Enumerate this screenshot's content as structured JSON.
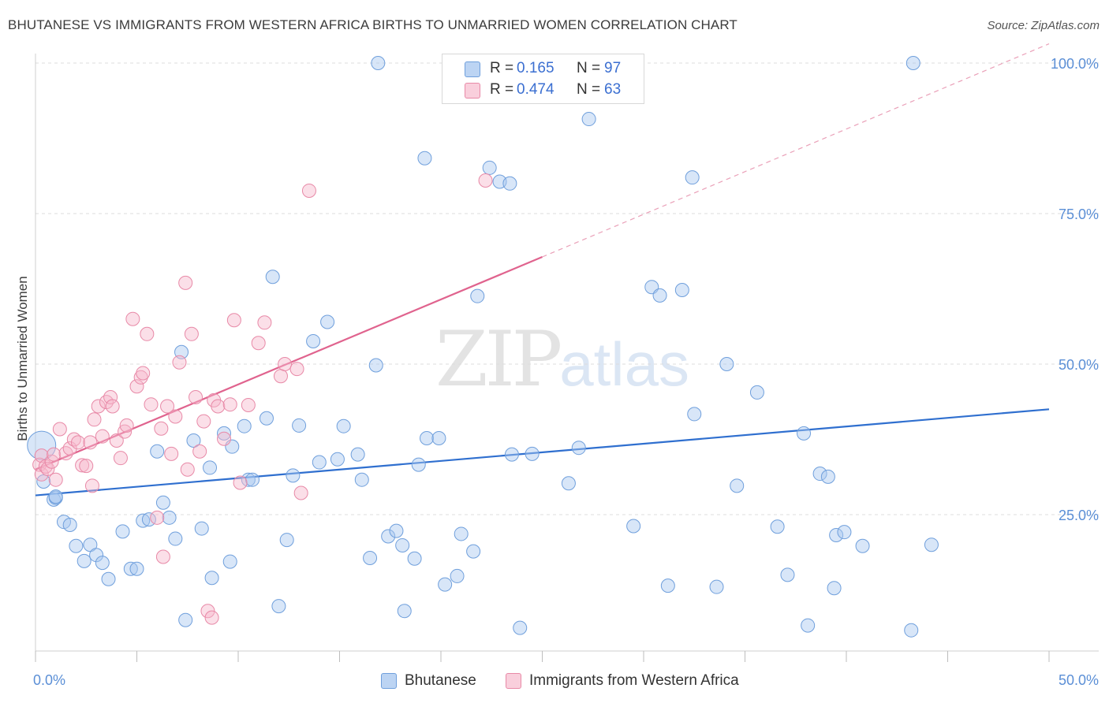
{
  "title": "BHUTANESE VS IMMIGRANTS FROM WESTERN AFRICA BIRTHS TO UNMARRIED WOMEN CORRELATION CHART",
  "source": "Source: ZipAtlas.com",
  "watermark": {
    "part1": "ZIP",
    "part2": "atlas"
  },
  "legend_top": [
    {
      "r_label": "R =",
      "r_value": "0.165",
      "n_label": "N =",
      "n_value": "97",
      "color": "#a9c8f0"
    },
    {
      "r_label": "R =",
      "r_value": "0.474",
      "n_label": "N =",
      "n_value": "63",
      "color": "#f6b8cb"
    }
  ],
  "legend_bottom": [
    {
      "label": "Bhutanese",
      "color": "#a9c8f0"
    },
    {
      "label": "Immigrants from Western Africa",
      "color": "#f6b8cb"
    }
  ],
  "chart_data": {
    "type": "scatter",
    "title": "BHUTANESE VS IMMIGRANTS FROM WESTERN AFRICA BIRTHS TO UNMARRIED WOMEN CORRELATION CHART",
    "xlabel": "",
    "ylabel": "Births to Unmarried Women",
    "xlim": [
      0,
      50
    ],
    "ylim": [
      0,
      105
    ],
    "x_tick_labels": [
      {
        "value": 0,
        "label": "0.0%"
      },
      {
        "value": 50,
        "label": "50.0%"
      }
    ],
    "y_tick_labels": [
      {
        "value": 25,
        "label": "25.0%"
      },
      {
        "value": 50,
        "label": "50.0%"
      },
      {
        "value": 75,
        "label": "75.0%"
      },
      {
        "value": 100,
        "label": "100.0%"
      }
    ],
    "grid": "horizontal dashed",
    "legend_position": "top-center",
    "series": [
      {
        "name": "Bhutanese",
        "color": "#a9c8f0",
        "stroke": "#6f9fdc",
        "r": 0.165,
        "n": 97,
        "trend": {
          "x0": 0,
          "y0": 28.2,
          "x1": 50,
          "y1": 42.5,
          "color": "#2f6fcf"
        },
        "points": [
          [
            0.3,
            36.5
          ],
          [
            0.4,
            30.5
          ],
          [
            0.9,
            27.5
          ],
          [
            1.0,
            27.8
          ],
          [
            1.4,
            23.8
          ],
          [
            1.7,
            23.3
          ],
          [
            2.0,
            19.8
          ],
          [
            2.4,
            17.3
          ],
          [
            2.7,
            20.0
          ],
          [
            3.0,
            18.3
          ],
          [
            3.3,
            17.0
          ],
          [
            3.6,
            14.3
          ],
          [
            4.3,
            22.2
          ],
          [
            4.7,
            16.0
          ],
          [
            5.0,
            16.0
          ],
          [
            5.3,
            24.0
          ],
          [
            5.6,
            24.2
          ],
          [
            6.0,
            35.5
          ],
          [
            6.3,
            27.0
          ],
          [
            6.6,
            24.5
          ],
          [
            6.9,
            21.0
          ],
          [
            7.2,
            52.0
          ],
          [
            7.4,
            7.5
          ],
          [
            7.8,
            37.3
          ],
          [
            8.2,
            22.7
          ],
          [
            8.6,
            32.8
          ],
          [
            8.7,
            14.5
          ],
          [
            9.3,
            38.5
          ],
          [
            9.6,
            17.2
          ],
          [
            9.7,
            36.3
          ],
          [
            10.3,
            39.7
          ],
          [
            10.5,
            30.8
          ],
          [
            10.7,
            30.8
          ],
          [
            11.4,
            41.0
          ],
          [
            11.7,
            64.5
          ],
          [
            12.0,
            9.8
          ],
          [
            12.4,
            20.8
          ],
          [
            12.7,
            31.5
          ],
          [
            13.0,
            39.8
          ],
          [
            13.7,
            53.8
          ],
          [
            14.0,
            33.7
          ],
          [
            14.4,
            57.0
          ],
          [
            14.9,
            34.2
          ],
          [
            15.2,
            39.7
          ],
          [
            15.9,
            35.0
          ],
          [
            16.1,
            30.8
          ],
          [
            16.5,
            17.8
          ],
          [
            16.8,
            49.8
          ],
          [
            16.9,
            100.0
          ],
          [
            17.4,
            21.4
          ],
          [
            17.8,
            22.3
          ],
          [
            18.1,
            19.9
          ],
          [
            18.2,
            9.0
          ],
          [
            18.7,
            17.7
          ],
          [
            18.9,
            33.3
          ],
          [
            19.2,
            84.2
          ],
          [
            19.3,
            37.7
          ],
          [
            19.9,
            37.7
          ],
          [
            20.2,
            13.4
          ],
          [
            20.8,
            14.8
          ],
          [
            21.0,
            21.8
          ],
          [
            21.6,
            18.9
          ],
          [
            21.8,
            61.3
          ],
          [
            22.4,
            82.6
          ],
          [
            22.9,
            80.3
          ],
          [
            23.4,
            80.0
          ],
          [
            23.5,
            35.0
          ],
          [
            23.9,
            6.2
          ],
          [
            24.5,
            35.1
          ],
          [
            26.3,
            30.2
          ],
          [
            26.8,
            36.1
          ],
          [
            27.3,
            90.7
          ],
          [
            29.5,
            23.1
          ],
          [
            30.4,
            62.8
          ],
          [
            30.8,
            61.4
          ],
          [
            31.2,
            13.2
          ],
          [
            31.9,
            62.3
          ],
          [
            32.4,
            81.0
          ],
          [
            32.5,
            41.7
          ],
          [
            33.6,
            13.0
          ],
          [
            34.1,
            50.0
          ],
          [
            34.6,
            29.8
          ],
          [
            35.6,
            45.3
          ],
          [
            36.6,
            23.0
          ],
          [
            37.1,
            15.0
          ],
          [
            37.9,
            38.5
          ],
          [
            38.1,
            6.6
          ],
          [
            38.7,
            31.8
          ],
          [
            39.1,
            31.3
          ],
          [
            39.4,
            12.8
          ],
          [
            39.5,
            21.6
          ],
          [
            39.9,
            22.1
          ],
          [
            40.8,
            19.8
          ],
          [
            43.2,
            5.8
          ],
          [
            43.3,
            100.0
          ],
          [
            44.2,
            20.0
          ],
          [
            1.0,
            28.0
          ]
        ]
      },
      {
        "name": "Immigrants from Western Africa",
        "color": "#f6b8cb",
        "stroke": "#e889a7",
        "r": 0.474,
        "n": 63,
        "trend": {
          "x0": 0,
          "y0": 32.5,
          "x1": 25,
          "y1": 67.8,
          "x_dash_end": 50,
          "y_dash_end": 103.2,
          "color": "#e0638e"
        },
        "points": [
          [
            0.2,
            33.3
          ],
          [
            0.3,
            31.7
          ],
          [
            0.3,
            34.8
          ],
          [
            0.5,
            33.0
          ],
          [
            0.6,
            32.6
          ],
          [
            0.8,
            33.8
          ],
          [
            0.9,
            35.0
          ],
          [
            1.0,
            30.8
          ],
          [
            1.2,
            39.2
          ],
          [
            1.5,
            35.2
          ],
          [
            1.7,
            36.0
          ],
          [
            1.9,
            37.5
          ],
          [
            2.1,
            37.0
          ],
          [
            2.3,
            33.2
          ],
          [
            2.5,
            33.1
          ],
          [
            2.7,
            37.0
          ],
          [
            2.8,
            29.8
          ],
          [
            2.9,
            40.8
          ],
          [
            3.1,
            43.0
          ],
          [
            3.3,
            38.0
          ],
          [
            3.5,
            43.7
          ],
          [
            3.7,
            44.5
          ],
          [
            3.8,
            43.0
          ],
          [
            4.0,
            37.3
          ],
          [
            4.2,
            34.4
          ],
          [
            4.4,
            38.8
          ],
          [
            4.5,
            39.8
          ],
          [
            4.8,
            57.5
          ],
          [
            5.0,
            46.3
          ],
          [
            5.2,
            47.8
          ],
          [
            5.3,
            48.5
          ],
          [
            5.5,
            55.0
          ],
          [
            5.7,
            43.3
          ],
          [
            6.0,
            24.5
          ],
          [
            6.2,
            39.3
          ],
          [
            6.3,
            18.0
          ],
          [
            6.5,
            43.0
          ],
          [
            6.7,
            35.1
          ],
          [
            6.9,
            41.3
          ],
          [
            7.1,
            50.3
          ],
          [
            7.4,
            63.5
          ],
          [
            7.5,
            32.5
          ],
          [
            7.7,
            55.0
          ],
          [
            7.9,
            44.5
          ],
          [
            8.1,
            35.5
          ],
          [
            8.3,
            40.5
          ],
          [
            8.5,
            9.0
          ],
          [
            8.7,
            7.9
          ],
          [
            8.8,
            44.0
          ],
          [
            9.0,
            43.0
          ],
          [
            9.3,
            37.6
          ],
          [
            9.6,
            43.3
          ],
          [
            9.8,
            57.3
          ],
          [
            10.1,
            30.3
          ],
          [
            10.5,
            43.2
          ],
          [
            11.0,
            53.5
          ],
          [
            11.3,
            56.9
          ],
          [
            12.1,
            48.0
          ],
          [
            12.3,
            50.0
          ],
          [
            12.9,
            49.2
          ],
          [
            13.1,
            28.6
          ],
          [
            13.5,
            78.8
          ],
          [
            22.2,
            80.5
          ]
        ]
      }
    ]
  }
}
